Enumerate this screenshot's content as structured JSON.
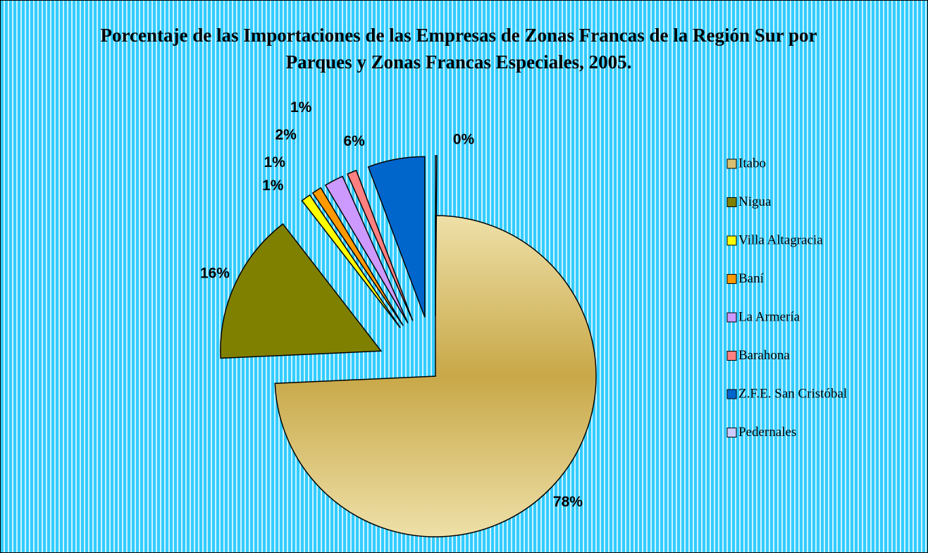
{
  "chart_data": {
    "type": "pie",
    "title": "Porcentaje de las Importaciones de las Empresas de Zonas Francas de la Región Sur por Parques y Zonas Francas Especiales,  2005.",
    "categories": [
      "Itabo",
      "Nigua",
      "Villa Altagracia",
      "Baní",
      "La Armería",
      "Barahona",
      "Z.F.E. San Cristóbal",
      "Pedernales"
    ],
    "values": [
      78,
      16,
      1,
      1,
      2,
      1,
      6,
      0
    ],
    "value_labels": [
      "78%",
      "16%",
      "1%",
      "1%",
      "2%",
      "1%",
      "6%",
      "0%"
    ],
    "colors": [
      "#d9c070",
      "#808000",
      "#ffff00",
      "#ff9900",
      "#cc99ff",
      "#ff8080",
      "#0066cc",
      "#ccccff"
    ],
    "legend": "right"
  }
}
